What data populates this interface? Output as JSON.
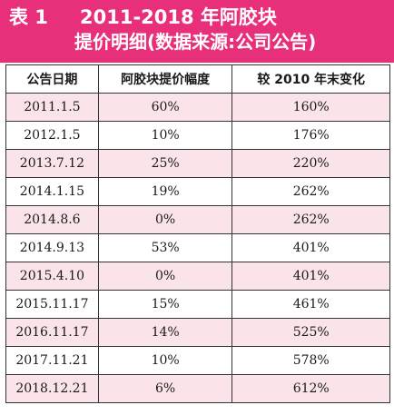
{
  "title": {
    "label": "表 1",
    "line1": "2011-2018 年阿胶块",
    "line2": "提价明细(数据来源:公司公告)"
  },
  "colors": {
    "header_bg": "#e8307a",
    "row_alt_bg": "#fbe3ea"
  },
  "table": {
    "headers": [
      "公告日期",
      "阿胶块提价幅度",
      "较 2010 年末变化"
    ],
    "rows": [
      [
        "2011.1.5",
        "60%",
        "160%"
      ],
      [
        "2012.1.5",
        "10%",
        "176%"
      ],
      [
        "2013.7.12",
        "25%",
        "220%"
      ],
      [
        "2014.1.15",
        "19%",
        "262%"
      ],
      [
        "2014.8.6",
        "0%",
        "262%"
      ],
      [
        "2014.9.13",
        "53%",
        "401%"
      ],
      [
        "2015.4.10",
        "0%",
        "401%"
      ],
      [
        "2015.11.17",
        "15%",
        "461%"
      ],
      [
        "2016.11.17",
        "14%",
        "525%"
      ],
      [
        "2017.11.21",
        "10%",
        "578%"
      ],
      [
        "2018.12.21",
        "6%",
        "612%"
      ]
    ]
  }
}
